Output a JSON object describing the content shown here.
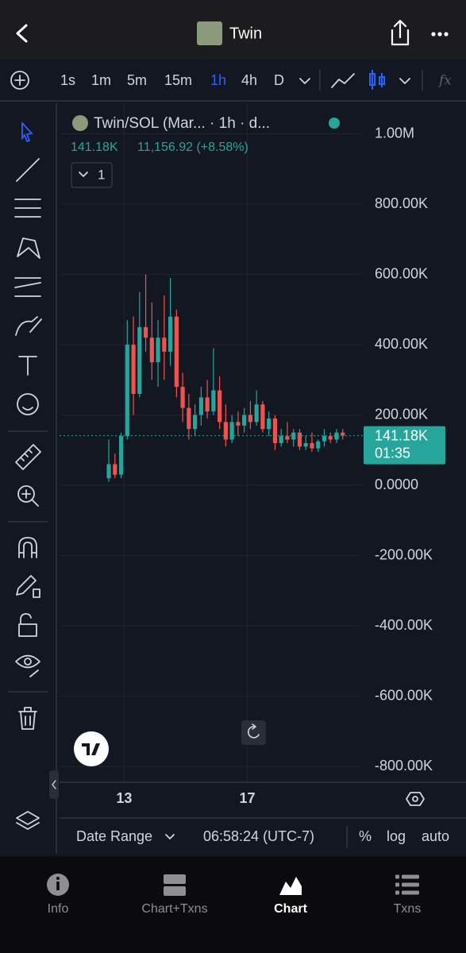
{
  "header": {
    "title": "Twin"
  },
  "toolbar": {
    "intervals": [
      "1s",
      "1m",
      "5m",
      "15m",
      "1h",
      "4h",
      "D"
    ],
    "active_interval": 4
  },
  "chart_data": {
    "type": "candlestick",
    "title": "Twin/SOL (Mar... · 1h · d...",
    "last": "141.18K",
    "change": "11,156.92 (+8.58%)",
    "pane_count": "1",
    "up_color": "#26a69a",
    "down_color": "#ef5350",
    "x": [
      12.5,
      12.7,
      12.9,
      13.1,
      13.3,
      13.5,
      13.7,
      13.9,
      14.1,
      14.3,
      14.5,
      14.7,
      14.9,
      15.1,
      15.3,
      15.5,
      15.7,
      15.9,
      16.1,
      16.3,
      16.5,
      16.7,
      16.9,
      17.1,
      17.3,
      17.5,
      17.7,
      17.9,
      18.1,
      18.3,
      18.5,
      18.7,
      18.9,
      19.1,
      19.3,
      19.5,
      19.7,
      19.9,
      20.1
    ],
    "open": [
      20000,
      60000,
      30000,
      140000,
      400000,
      260000,
      450000,
      420000,
      350000,
      420000,
      380000,
      480000,
      280000,
      220000,
      160000,
      200000,
      250000,
      210000,
      270000,
      180000,
      130000,
      180000,
      170000,
      200000,
      180000,
      230000,
      160000,
      190000,
      120000,
      140000,
      130000,
      150000,
      110000,
      120000,
      105000,
      125000,
      140000,
      130000,
      150000
    ],
    "high": [
      130000,
      90000,
      150000,
      470000,
      480000,
      550000,
      600000,
      520000,
      470000,
      540000,
      590000,
      500000,
      320000,
      260000,
      230000,
      280000,
      300000,
      390000,
      310000,
      230000,
      200000,
      210000,
      220000,
      240000,
      270000,
      240000,
      210000,
      200000,
      160000,
      180000,
      160000,
      160000,
      140000,
      150000,
      130000,
      160000,
      150000,
      160000,
      160000
    ],
    "low": [
      10000,
      20000,
      20000,
      130000,
      200000,
      250000,
      380000,
      300000,
      280000,
      300000,
      340000,
      250000,
      180000,
      130000,
      140000,
      170000,
      190000,
      200000,
      160000,
      110000,
      120000,
      140000,
      150000,
      160000,
      170000,
      150000,
      140000,
      100000,
      110000,
      120000,
      110000,
      100000,
      100000,
      95000,
      95000,
      110000,
      120000,
      120000,
      130000
    ],
    "close": [
      60000,
      30000,
      140000,
      400000,
      260000,
      450000,
      420000,
      350000,
      420000,
      380000,
      480000,
      280000,
      220000,
      160000,
      200000,
      250000,
      210000,
      270000,
      180000,
      130000,
      180000,
      170000,
      200000,
      180000,
      230000,
      160000,
      190000,
      120000,
      140000,
      130000,
      150000,
      110000,
      120000,
      105000,
      125000,
      140000,
      130000,
      150000,
      141180
    ],
    "xlim": [
      10.9,
      20.7
    ],
    "xticks": [
      13,
      17
    ],
    "ylim": [
      -845000,
      1087000
    ],
    "yticks": [
      {
        "value": 1000000,
        "label": "1.00M"
      },
      {
        "value": 800000,
        "label": "800.00K"
      },
      {
        "value": 600000,
        "label": "600.00K"
      },
      {
        "value": 400000,
        "label": "400.00K"
      },
      {
        "value": 200000,
        "label": "200.00K"
      },
      {
        "value": 0,
        "label": "0.0000"
      },
      {
        "value": -200000,
        "label": "-200.00K"
      },
      {
        "value": -400000,
        "label": "-400.00K"
      },
      {
        "value": -600000,
        "label": "-600.00K"
      },
      {
        "value": -800000,
        "label": "-800.00K"
      }
    ],
    "grid": true,
    "last_price": {
      "value": 141180,
      "label": "141.18K",
      "countdown": "01:35"
    }
  },
  "bottom": {
    "date_range": "Date Range",
    "time": "06:58:24 (UTC-7)",
    "options": [
      "%",
      "log",
      "auto"
    ]
  },
  "tabs": [
    "Info",
    "Chart+Txns",
    "Chart",
    "Txns"
  ],
  "active_tab": 2
}
